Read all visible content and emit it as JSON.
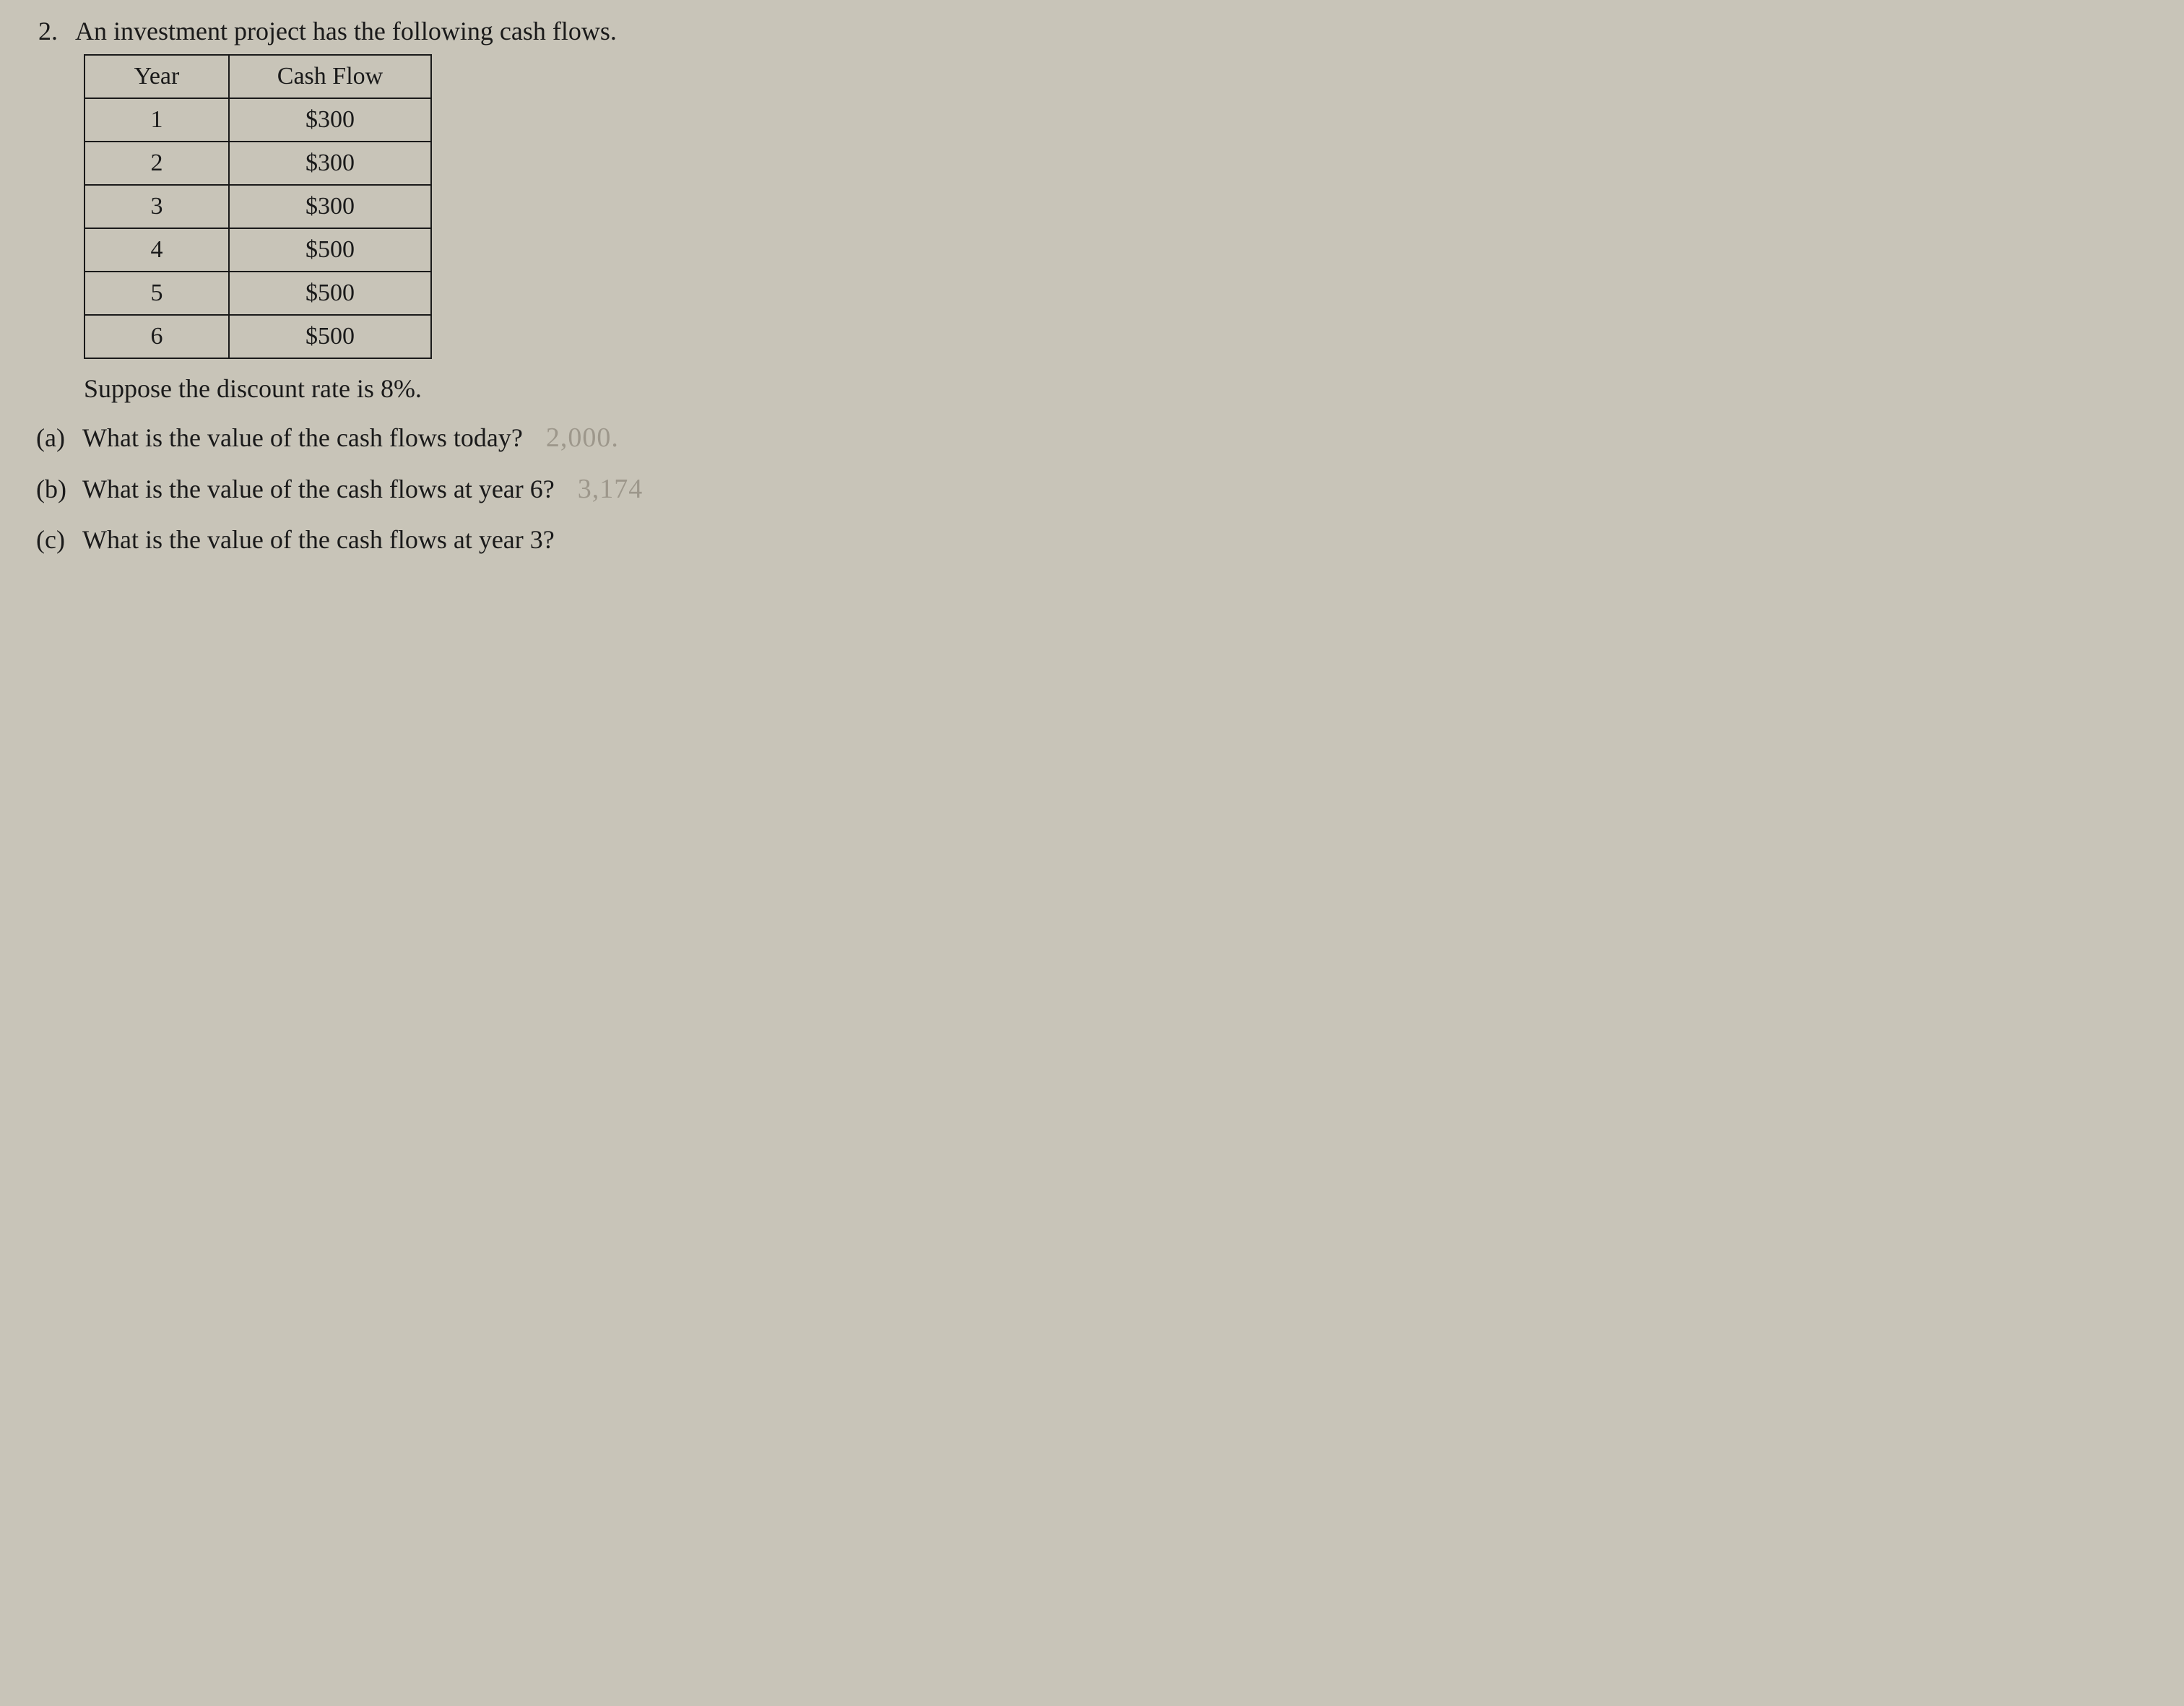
{
  "problem": {
    "number": "2.",
    "statement": "An investment project has the following cash flows.",
    "discount_line": "Suppose the discount rate is 8%."
  },
  "table": {
    "headers": {
      "year": "Year",
      "cashflow": "Cash Flow"
    },
    "rows": [
      {
        "year": "1",
        "cashflow": "$300"
      },
      {
        "year": "2",
        "cashflow": "$300"
      },
      {
        "year": "3",
        "cashflow": "$300"
      },
      {
        "year": "4",
        "cashflow": "$500"
      },
      {
        "year": "5",
        "cashflow": "$500"
      },
      {
        "year": "6",
        "cashflow": "$500"
      }
    ],
    "style": {
      "border_color": "#1a1a1a",
      "border_width": 2,
      "col_year_width": 200,
      "col_cashflow_width": 280,
      "font_size": 34,
      "text_align": "center"
    }
  },
  "questions": {
    "a": {
      "label": "(a)",
      "text": "What is the value of the cash flows today?",
      "handwritten": "2,000."
    },
    "b": {
      "label": "(b)",
      "text": "What is the value of the cash flows at year 6?",
      "handwritten": "3,174"
    },
    "c": {
      "label": "(c)",
      "text": "What is the value of the cash flows at year 3?",
      "handwritten": ""
    }
  },
  "colors": {
    "background": "#c8c4b8",
    "text": "#1a1a1a",
    "handwritten": "#7a7468"
  },
  "typography": {
    "font_family": "Times New Roman",
    "body_fontsize": 36,
    "table_fontsize": 34,
    "handwritten_fontsize": 38
  }
}
